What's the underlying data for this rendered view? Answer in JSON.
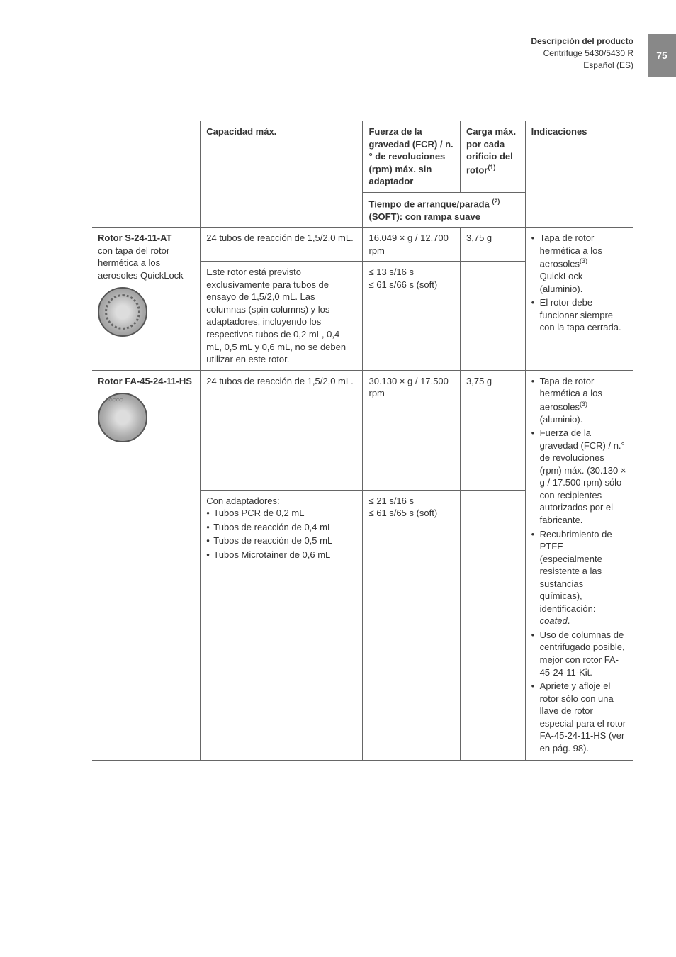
{
  "header": {
    "title": "Descripción del producto",
    "sub1": "Centrifuge 5430/5430 R",
    "sub2": "Español (ES)"
  },
  "page_number": "75",
  "table": {
    "headers": {
      "h1": "",
      "h2": "Capacidad máx.",
      "h3": "Fuerza de la gravedad (FCR) / n.° de revoluciones (rpm) máx. sin adaptador",
      "h4": "Carga máx. por cada orificio del rotor",
      "h4_sup": "(1)",
      "h5": "Indicaciones",
      "sub": "Tiempo de arranque/parada ",
      "sub_sup": "(2)",
      "sub_rest": " (SOFT): con rampa suave"
    },
    "rows": [
      {
        "name_bold": "Rotor S-24-11-AT",
        "name_rest": "con tapa del rotor hermética a los aerosoles QuickLock",
        "rotor_class": "gear",
        "cap_top": "24 tubos de reacción de 1,5/2,0 mL.",
        "cap_bottom": "Este rotor está previsto exclusivamente para tubos de ensayo de 1,5/2,0 mL. Las columnas (spin columns) y los adaptadores, incluyendo los respectivos tubos de 0,2 mL, 0,4 mL, 0,5 mL y 0,6 mL, no se deben utilizar en este rotor.",
        "rcf": "16.049 × g / 12.700 rpm",
        "time1": "≤ 13 s/16 s",
        "time2": "≤ 61 s/66 s (soft)",
        "load": "3,75 g",
        "ind_items": [
          {
            "text": "Tapa de rotor hermética a los aerosoles",
            "sup": "(3)",
            "rest": " QuickLock (aluminio)."
          },
          {
            "text": "El rotor debe funcionar siempre con la tapa cerrada."
          }
        ]
      },
      {
        "name_bold": "Rotor FA-45-24-11-HS",
        "name_rest": "",
        "rotor_class": "holes",
        "cap_top": "24 tubos de reacción de 1,5/2,0 mL.",
        "cap_adapt_label": "Con adaptadores:",
        "cap_items": [
          "Tubos PCR de 0,2 mL",
          "Tubos de reacción de 0,4 mL",
          "Tubos de reacción de 0,5 mL",
          "Tubos Microtainer de 0,6 mL"
        ],
        "rcf": "30.130 × g / 17.500 rpm",
        "time1": "≤ 21 s/16 s",
        "time2": "≤ 61 s/65 s (soft)",
        "load": "3,75 g",
        "ind_items": [
          {
            "text": "Tapa de rotor hermética a los aerosoles",
            "sup": "(3)",
            "rest": " (aluminio)."
          },
          {
            "text": "Fuerza de la gravedad (FCR) / n.° de revoluciones (rpm) máx. (30.130 × g / 17.500 rpm) sólo con recipientes autorizados por el fabricante."
          },
          {
            "text": "Recubrimiento de PTFE (especialmente resistente a las sustancias químicas), identificación: ",
            "italic": "coated",
            "rest2": "."
          },
          {
            "text": "Uso de columnas de centrifugado posible, mejor con rotor FA-45-24-11-Kit."
          },
          {
            "text": "Apriete y afloje el rotor sólo con una llave de rotor especial para el rotor FA-45-24-11-HS (ver en pág. 98)."
          }
        ]
      }
    ]
  }
}
